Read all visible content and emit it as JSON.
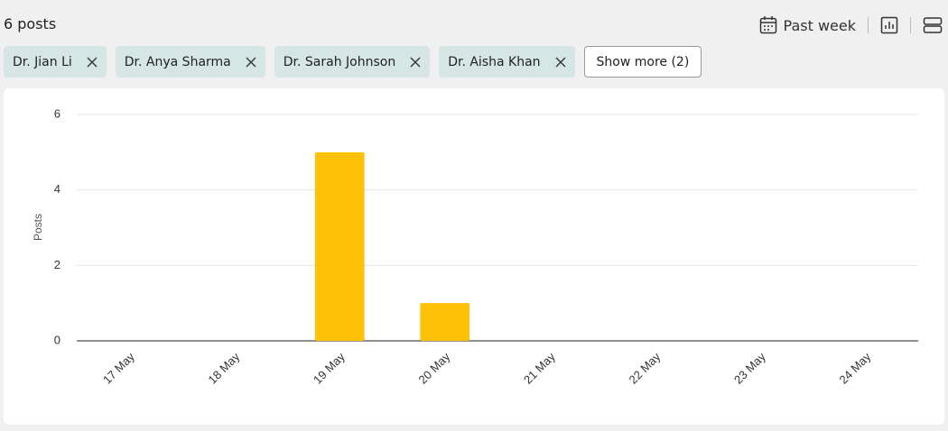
{
  "header": {
    "title": "6 posts",
    "period": "Past week"
  },
  "filters": {
    "chips": [
      "Dr. Jian Li",
      "Dr. Anya Sharma",
      "Dr. Sarah Johnson",
      "Dr. Aisha Khan"
    ],
    "more": "Show more (2)"
  },
  "chart_data": {
    "type": "bar",
    "y_label": "Posts",
    "categories": [
      "17 May",
      "18 May",
      "19 May",
      "20 May",
      "21 May",
      "22 May",
      "23 May",
      "24 May"
    ],
    "values": [
      0,
      0,
      5,
      1,
      0,
      0,
      0,
      0
    ],
    "color": "#ffc107",
    "ylim": [
      0,
      6
    ],
    "yticks": [
      0,
      2,
      4,
      6
    ],
    "grid": true
  }
}
